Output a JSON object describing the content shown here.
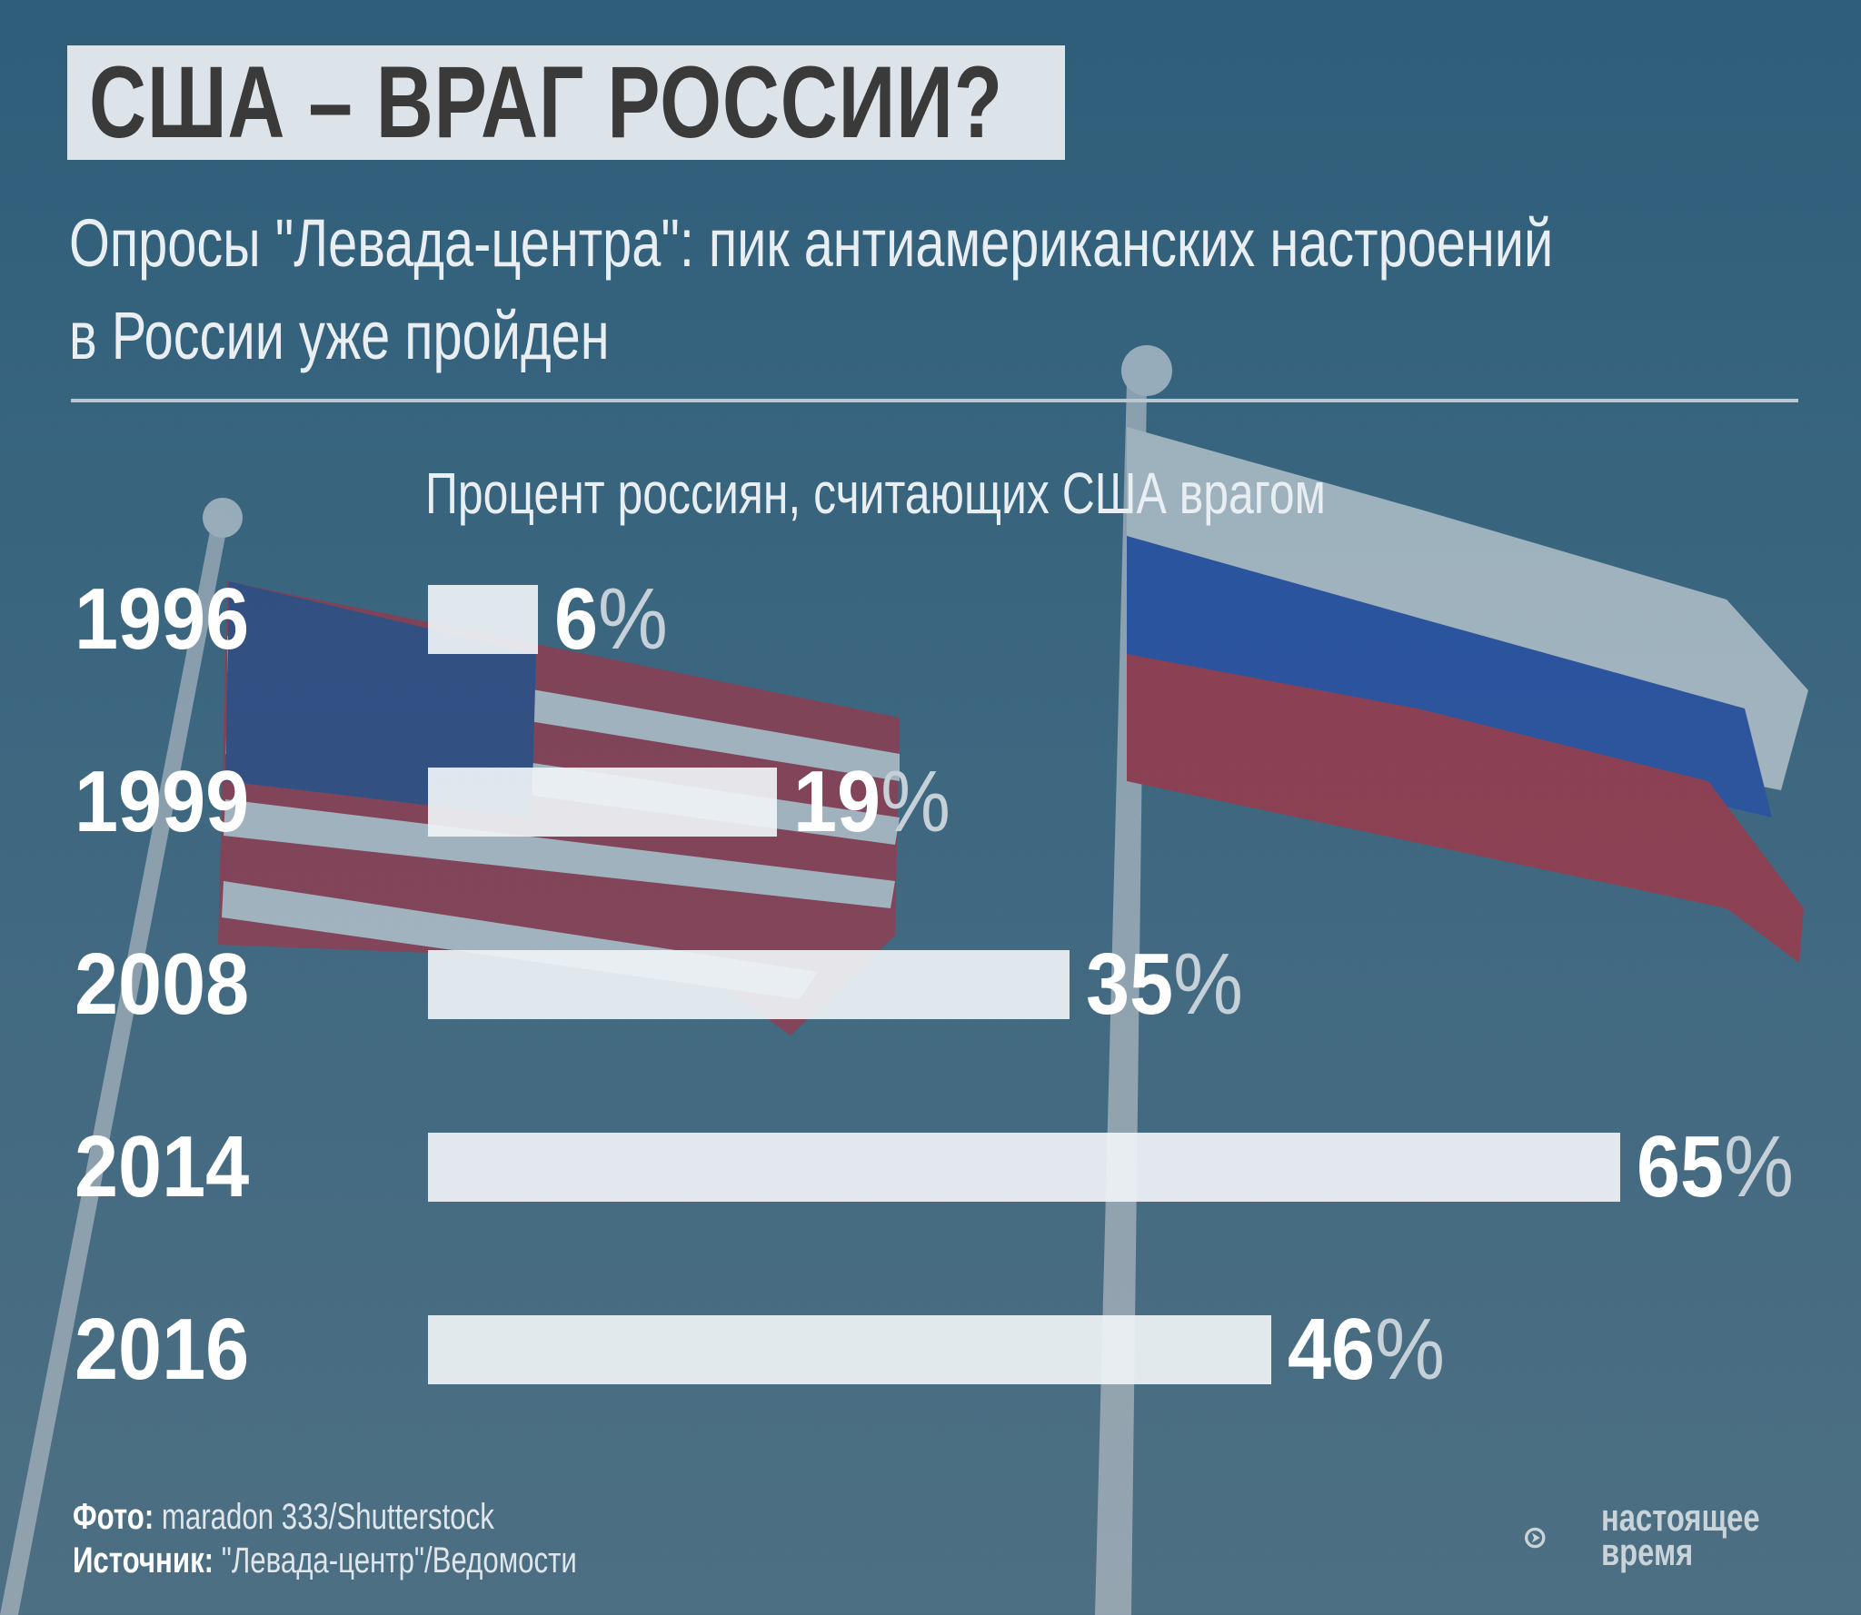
{
  "title": "США – ВРАГ РОССИИ?",
  "subtitle_lines": [
    "Опросы \"Левада-центра\": пик антиамериканских настроений",
    "в России уже пройден"
  ],
  "chart_data": {
    "type": "bar",
    "orientation": "horizontal",
    "title": "Процент россиян, считающих США врагом",
    "categories": [
      "1996",
      "1999",
      "2008",
      "2014",
      "2016"
    ],
    "values": [
      6,
      19,
      35,
      65,
      46
    ],
    "value_labels": [
      "6",
      "19",
      "35",
      "65",
      "46"
    ],
    "unit": "%",
    "xlim": [
      0,
      65
    ],
    "grid": false
  },
  "footer": {
    "photo_label": "Фото:",
    "photo_credit": "maradon 333/Shutterstock",
    "source_label": "Источник:",
    "source": "\"Левада-центр\"/Ведомости"
  },
  "logo": {
    "line1": "настоящее",
    "line2": "время"
  },
  "colors": {
    "background": "#3d6780",
    "bar": "#eef2f5",
    "title_box": "#dde4e9"
  }
}
